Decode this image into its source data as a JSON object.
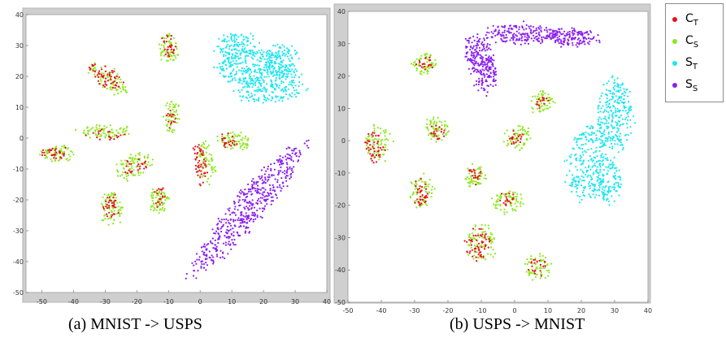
{
  "captions": [
    "(a) MNIST -> USPS",
    "(b) USPS -> MNIST"
  ],
  "legend": [
    {
      "base": "C",
      "sub": "T",
      "color": "#e8101a"
    },
    {
      "base": "C",
      "sub": "S",
      "color": "#8ee81f"
    },
    {
      "base": "S",
      "sub": "T",
      "color": "#1fe6f0"
    },
    {
      "base": "S",
      "sub": "S",
      "color": "#8a1ff0"
    }
  ],
  "chart_data": [
    {
      "type": "scatter",
      "title": "",
      "xlabel": "",
      "ylabel": "",
      "xlim": [
        -55,
        40
      ],
      "ylim": [
        -50,
        40
      ],
      "xticks": [
        -50,
        -40,
        -30,
        -20,
        -10,
        0,
        10,
        20,
        30,
        40
      ],
      "yticks": [
        -50,
        -40,
        -30,
        -20,
        -10,
        0,
        10,
        20,
        30,
        40
      ],
      "grid": false,
      "clusters": [
        {
          "series": "S_T",
          "cx": 17,
          "cy": 23,
          "rx": 12,
          "ry": 6,
          "angle": 0,
          "n": 240
        },
        {
          "series": "S_T",
          "cx": 22,
          "cy": 17,
          "rx": 11,
          "ry": 6,
          "angle": 0,
          "n": 220
        },
        {
          "series": "S_T",
          "cx": 12,
          "cy": 30,
          "rx": 7,
          "ry": 4,
          "angle": 0,
          "n": 120
        },
        {
          "series": "S_T",
          "cx": 25,
          "cy": 25,
          "rx": 7,
          "ry": 5,
          "angle": 0,
          "n": 120
        },
        {
          "series": "S_S",
          "cx": 15,
          "cy": -23,
          "rx": 27,
          "ry": 5,
          "angle": 50,
          "n": 520
        },
        {
          "series": "C_S",
          "cx": -10,
          "cy": 29,
          "rx": 3,
          "ry": 5,
          "angle": 0,
          "n": 60
        },
        {
          "series": "C_T",
          "cx": -10,
          "cy": 30,
          "rx": 2,
          "ry": 4,
          "angle": 0,
          "n": 30
        },
        {
          "series": "C_S",
          "cx": -29,
          "cy": 19,
          "rx": 7,
          "ry": 3,
          "angle": -35,
          "n": 80
        },
        {
          "series": "C_T",
          "cx": -30,
          "cy": 20,
          "rx": 6,
          "ry": 3,
          "angle": -35,
          "n": 60
        },
        {
          "series": "C_S",
          "cx": -9,
          "cy": 7,
          "rx": 2.5,
          "ry": 5,
          "angle": 0,
          "n": 55
        },
        {
          "series": "C_T",
          "cx": -9,
          "cy": 6,
          "rx": 1.5,
          "ry": 3,
          "angle": 0,
          "n": 15
        },
        {
          "series": "C_S",
          "cx": -30,
          "cy": 2,
          "rx": 8,
          "ry": 2,
          "angle": 0,
          "n": 75
        },
        {
          "series": "C_T",
          "cx": -30,
          "cy": 1,
          "rx": 6,
          "ry": 1.5,
          "angle": 0,
          "n": 20
        },
        {
          "series": "C_S",
          "cx": -45,
          "cy": -5,
          "rx": 5,
          "ry": 2.5,
          "angle": 0,
          "n": 60
        },
        {
          "series": "C_T",
          "cx": -46,
          "cy": -5,
          "rx": 4,
          "ry": 2,
          "angle": 0,
          "n": 30
        },
        {
          "series": "C_S",
          "cx": 11,
          "cy": -1,
          "rx": 5,
          "ry": 2.5,
          "angle": -10,
          "n": 70
        },
        {
          "series": "C_T",
          "cx": 9,
          "cy": -1,
          "rx": 3,
          "ry": 2,
          "angle": -10,
          "n": 25
        },
        {
          "series": "C_S",
          "cx": 2,
          "cy": -8,
          "rx": 2.5,
          "ry": 7,
          "angle": 10,
          "n": 65
        },
        {
          "series": "C_T",
          "cx": 0,
          "cy": -9,
          "rx": 1.8,
          "ry": 7,
          "angle": 10,
          "n": 50
        },
        {
          "series": "C_S",
          "cx": -21,
          "cy": -9,
          "rx": 6,
          "ry": 3.5,
          "angle": 20,
          "n": 80
        },
        {
          "series": "C_T",
          "cx": -20,
          "cy": -9,
          "rx": 4,
          "ry": 2.5,
          "angle": 20,
          "n": 25
        },
        {
          "series": "C_S",
          "cx": -28,
          "cy": -23,
          "rx": 3.5,
          "ry": 5.5,
          "angle": 0,
          "n": 70
        },
        {
          "series": "C_T",
          "cx": -28,
          "cy": -22,
          "rx": 2.5,
          "ry": 4,
          "angle": 0,
          "n": 35
        },
        {
          "series": "C_S",
          "cx": -13,
          "cy": -20,
          "rx": 3.5,
          "ry": 5,
          "angle": 0,
          "n": 65
        },
        {
          "series": "C_T",
          "cx": -13,
          "cy": -19,
          "rx": 2.5,
          "ry": 3.5,
          "angle": 0,
          "n": 20
        }
      ]
    },
    {
      "type": "scatter",
      "title": "",
      "xlabel": "",
      "ylabel": "",
      "xlim": [
        -50,
        40
      ],
      "ylim": [
        -50,
        40
      ],
      "xticks": [
        -50,
        -40,
        -30,
        -20,
        -10,
        0,
        10,
        20,
        30,
        40
      ],
      "yticks": [
        -50,
        -40,
        -30,
        -20,
        -10,
        0,
        10,
        20,
        30,
        40
      ],
      "grid": false,
      "clusters": [
        {
          "series": "S_S",
          "cx": -10,
          "cy": 24,
          "rx": 4,
          "ry": 9,
          "angle": 15,
          "n": 240
        },
        {
          "series": "S_S",
          "cx": 2,
          "cy": 33,
          "rx": 11,
          "ry": 3,
          "angle": 0,
          "n": 200
        },
        {
          "series": "S_S",
          "cx": 17,
          "cy": 32,
          "rx": 8,
          "ry": 2.5,
          "angle": -5,
          "n": 150
        },
        {
          "series": "S_T",
          "cx": 30,
          "cy": 8,
          "rx": 5,
          "ry": 11,
          "angle": 0,
          "n": 260
        },
        {
          "series": "S_T",
          "cx": 22,
          "cy": -7,
          "rx": 6,
          "ry": 12,
          "angle": -10,
          "n": 260
        },
        {
          "series": "S_T",
          "cx": 28,
          "cy": -12,
          "rx": 4,
          "ry": 7,
          "angle": 0,
          "n": 120
        },
        {
          "series": "C_S",
          "cx": -27,
          "cy": 24,
          "rx": 3.5,
          "ry": 3.5,
          "angle": 0,
          "n": 65
        },
        {
          "series": "C_T",
          "cx": -27,
          "cy": 24,
          "rx": 2,
          "ry": 2,
          "angle": 0,
          "n": 20
        },
        {
          "series": "C_S",
          "cx": 8,
          "cy": 12,
          "rx": 3.5,
          "ry": 3.5,
          "angle": 0,
          "n": 60
        },
        {
          "series": "C_T",
          "cx": 8,
          "cy": 12,
          "rx": 2,
          "ry": 2,
          "angle": 0,
          "n": 15
        },
        {
          "series": "C_S",
          "cx": -23,
          "cy": 4,
          "rx": 3.5,
          "ry": 4,
          "angle": 0,
          "n": 65
        },
        {
          "series": "C_T",
          "cx": -23,
          "cy": 3,
          "rx": 2,
          "ry": 2.5,
          "angle": 0,
          "n": 20
        },
        {
          "series": "C_S",
          "cx": 1,
          "cy": 1,
          "rx": 4,
          "ry": 3.5,
          "angle": 0,
          "n": 65
        },
        {
          "series": "C_T",
          "cx": 1,
          "cy": 1,
          "rx": 2.5,
          "ry": 2,
          "angle": 0,
          "n": 20
        },
        {
          "series": "C_S",
          "cx": -41,
          "cy": -1,
          "rx": 4,
          "ry": 5.5,
          "angle": 0,
          "n": 70
        },
        {
          "series": "C_T",
          "cx": -42,
          "cy": -2,
          "rx": 3,
          "ry": 4.5,
          "angle": 0,
          "n": 45
        },
        {
          "series": "C_S",
          "cx": -12,
          "cy": -11,
          "rx": 3,
          "ry": 3.5,
          "angle": 0,
          "n": 55
        },
        {
          "series": "C_T",
          "cx": -12,
          "cy": -11,
          "rx": 2,
          "ry": 2.5,
          "angle": 0,
          "n": 20
        },
        {
          "series": "C_S",
          "cx": -28,
          "cy": -16,
          "rx": 3.5,
          "ry": 5,
          "angle": 0,
          "n": 65
        },
        {
          "series": "C_T",
          "cx": -28,
          "cy": -16,
          "rx": 2.5,
          "ry": 4,
          "angle": 0,
          "n": 35
        },
        {
          "series": "C_S",
          "cx": -2,
          "cy": -19,
          "rx": 4.5,
          "ry": 3.5,
          "angle": 0,
          "n": 65
        },
        {
          "series": "C_T",
          "cx": -2,
          "cy": -18,
          "rx": 2.5,
          "ry": 2,
          "angle": 0,
          "n": 20
        },
        {
          "series": "C_S",
          "cx": -10,
          "cy": -32,
          "rx": 4.5,
          "ry": 6,
          "angle": 0,
          "n": 80
        },
        {
          "series": "C_T",
          "cx": -11,
          "cy": -32,
          "rx": 3.5,
          "ry": 5,
          "angle": 0,
          "n": 55
        },
        {
          "series": "C_S",
          "cx": 7,
          "cy": -39,
          "rx": 4,
          "ry": 4,
          "angle": 0,
          "n": 60
        },
        {
          "series": "C_T",
          "cx": 7,
          "cy": -39,
          "rx": 2.5,
          "ry": 2.5,
          "angle": 0,
          "n": 20
        }
      ]
    }
  ]
}
